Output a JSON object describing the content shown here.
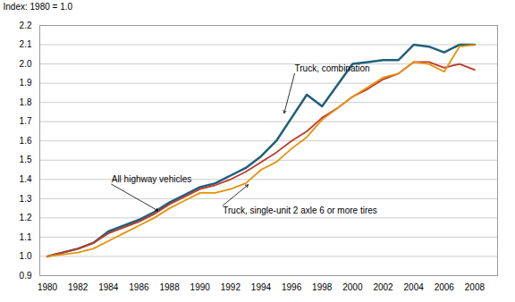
{
  "chart_data": {
    "type": "line",
    "ylabel": "Index: 1980 = 1.0",
    "x": [
      1980,
      1981,
      1982,
      1983,
      1984,
      1985,
      1986,
      1987,
      1988,
      1989,
      1990,
      1991,
      1992,
      1993,
      1994,
      1995,
      1996,
      1997,
      1998,
      1999,
      2000,
      2001,
      2002,
      2003,
      2004,
      2005,
      2006,
      2007,
      2008
    ],
    "series": [
      {
        "name": "Truck, combination",
        "color": "#1f5f7a",
        "values": [
          1.0,
          1.02,
          1.04,
          1.07,
          1.13,
          1.16,
          1.19,
          1.23,
          1.28,
          1.32,
          1.36,
          1.38,
          1.42,
          1.46,
          1.52,
          1.6,
          1.72,
          1.84,
          1.78,
          1.89,
          2.0,
          2.01,
          2.02,
          2.02,
          2.1,
          2.09,
          2.06,
          2.1,
          2.1
        ]
      },
      {
        "name": "All highway vehicles",
        "color": "#c0392b",
        "values": [
          1.0,
          1.02,
          1.04,
          1.07,
          1.12,
          1.15,
          1.18,
          1.22,
          1.27,
          1.31,
          1.35,
          1.37,
          1.4,
          1.44,
          1.49,
          1.54,
          1.6,
          1.65,
          1.72,
          1.77,
          1.83,
          1.87,
          1.92,
          1.95,
          2.01,
          2.01,
          1.98,
          2.0,
          1.97
        ]
      },
      {
        "name": "Truck, single-unit 2 axle 6 or more tires",
        "color": "#e8920a",
        "values": [
          1.0,
          1.01,
          1.02,
          1.04,
          1.08,
          1.12,
          1.16,
          1.2,
          1.25,
          1.29,
          1.33,
          1.33,
          1.35,
          1.38,
          1.45,
          1.49,
          1.56,
          1.62,
          1.71,
          1.77,
          1.83,
          1.88,
          1.93,
          1.95,
          2.01,
          2.0,
          1.96,
          2.09,
          2.1
        ]
      }
    ],
    "xlim": [
      1979.5,
      2009.5
    ],
    "xticks": [
      1980,
      1982,
      1984,
      1986,
      1988,
      1990,
      1992,
      1994,
      1996,
      1998,
      2000,
      2002,
      2004,
      2006,
      2008
    ],
    "ylim": [
      0.9,
      2.2
    ],
    "yticks": [
      0.9,
      {
        "value": 1.0,
        "label": "1.0"
      },
      1.1,
      1.2,
      1.3,
      1.4,
      1.5,
      1.6,
      1.7,
      1.8,
      1.9,
      {
        "value": 2.0,
        "label": "2.0"
      },
      2.1,
      2.2
    ],
    "grid": "y",
    "annotations": [
      {
        "text": "Truck, combination",
        "xy": [
          1995.5,
          1.74
        ],
        "xytext": [
          1996.2,
          1.95
        ]
      },
      {
        "text": "All highway vehicles",
        "xy": [
          1987.3,
          1.235
        ],
        "xytext": [
          1984.2,
          1.375
        ]
      },
      {
        "text": "Truck, single-unit 2 axle 6 or more tires",
        "xy": [
          1993.2,
          1.375
        ],
        "xytext": [
          1991.5,
          1.265
        ]
      }
    ]
  }
}
